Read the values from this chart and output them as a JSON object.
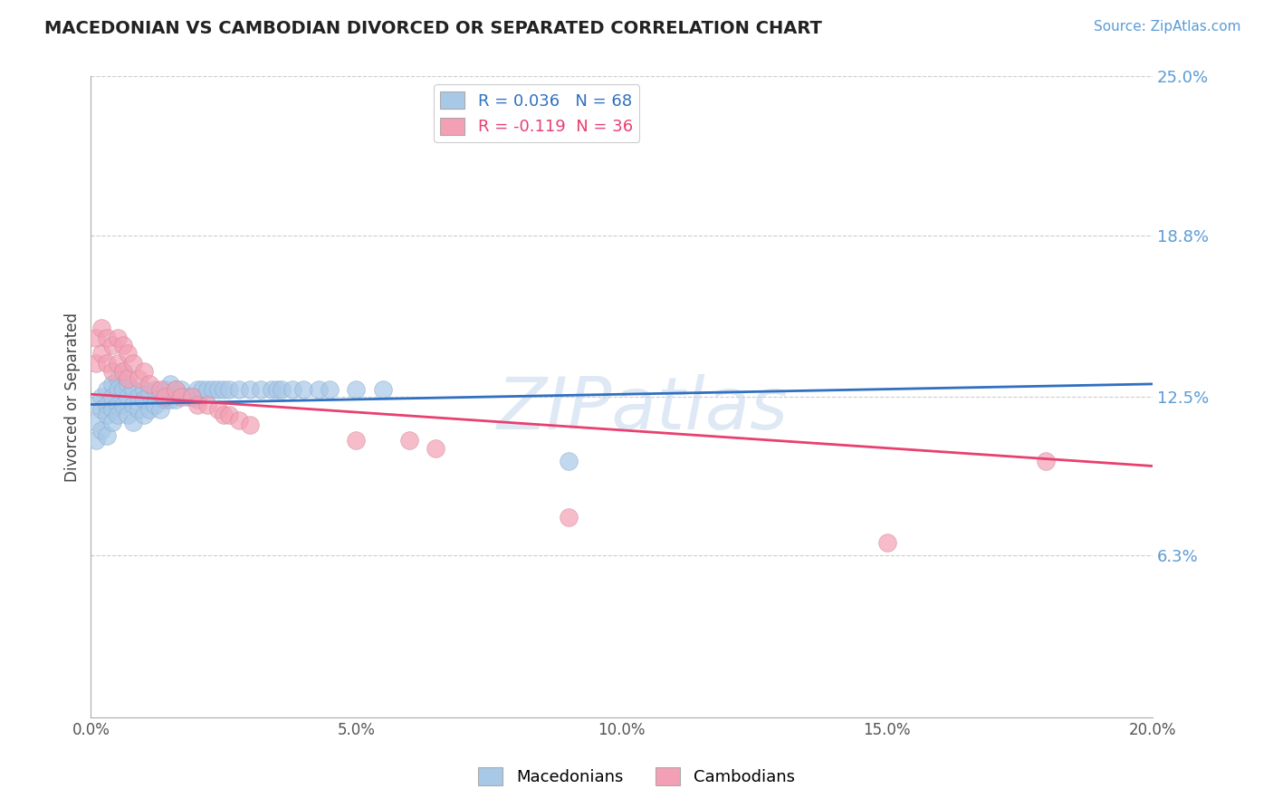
{
  "title": "MACEDONIAN VS CAMBODIAN DIVORCED OR SEPARATED CORRELATION CHART",
  "source_text": "Source: ZipAtlas.com",
  "ylabel": "Divorced or Separated",
  "xlim": [
    0.0,
    0.2
  ],
  "ylim": [
    0.0,
    0.25
  ],
  "yticks": [
    0.063,
    0.125,
    0.188,
    0.25
  ],
  "ytick_labels": [
    "6.3%",
    "12.5%",
    "18.8%",
    "25.0%"
  ],
  "xticks": [
    0.0,
    0.05,
    0.1,
    0.15,
    0.2
  ],
  "xtick_labels": [
    "0.0%",
    "5.0%",
    "10.0%",
    "15.0%",
    "20.0%"
  ],
  "macedonian_color": "#a8c8e8",
  "cambodian_color": "#f4a0b4",
  "macedonian_line_color": "#3070c0",
  "cambodian_line_color": "#e84070",
  "legend_macedonian_label": "R = 0.036   N = 68",
  "legend_cambodian_label": "R = -0.119  N = 36",
  "bottom_legend_macedonian": "Macedonians",
  "bottom_legend_cambodian": "Cambodians",
  "watermark_text": "ZIPatlas",
  "mac_trend_x0": 0.0,
  "mac_trend_y0": 0.122,
  "mac_trend_x1": 0.2,
  "mac_trend_y1": 0.13,
  "cam_trend_x0": 0.0,
  "cam_trend_y0": 0.126,
  "cam_trend_x1": 0.2,
  "cam_trend_y1": 0.098,
  "macedonian_x": [
    0.001,
    0.001,
    0.001,
    0.002,
    0.002,
    0.002,
    0.003,
    0.003,
    0.003,
    0.003,
    0.004,
    0.004,
    0.004,
    0.004,
    0.005,
    0.005,
    0.005,
    0.005,
    0.006,
    0.006,
    0.006,
    0.007,
    0.007,
    0.007,
    0.008,
    0.008,
    0.008,
    0.009,
    0.009,
    0.01,
    0.01,
    0.01,
    0.011,
    0.011,
    0.012,
    0.012,
    0.013,
    0.013,
    0.014,
    0.014,
    0.015,
    0.015,
    0.016,
    0.016,
    0.017,
    0.018,
    0.019,
    0.02,
    0.02,
    0.021,
    0.022,
    0.023,
    0.024,
    0.025,
    0.026,
    0.028,
    0.03,
    0.032,
    0.034,
    0.035,
    0.036,
    0.038,
    0.04,
    0.043,
    0.045,
    0.05,
    0.055,
    0.09
  ],
  "macedonian_y": [
    0.122,
    0.115,
    0.108,
    0.125,
    0.12,
    0.112,
    0.128,
    0.122,
    0.118,
    0.11,
    0.13,
    0.125,
    0.12,
    0.115,
    0.132,
    0.128,
    0.122,
    0.118,
    0.135,
    0.128,
    0.122,
    0.13,
    0.125,
    0.118,
    0.128,
    0.122,
    0.115,
    0.125,
    0.12,
    0.128,
    0.124,
    0.118,
    0.126,
    0.12,
    0.128,
    0.122,
    0.126,
    0.12,
    0.128,
    0.124,
    0.13,
    0.124,
    0.128,
    0.124,
    0.128,
    0.125,
    0.125,
    0.128,
    0.124,
    0.128,
    0.128,
    0.128,
    0.128,
    0.128,
    0.128,
    0.128,
    0.128,
    0.128,
    0.128,
    0.128,
    0.128,
    0.128,
    0.128,
    0.128,
    0.128,
    0.128,
    0.128,
    0.1
  ],
  "cambodian_x": [
    0.001,
    0.001,
    0.002,
    0.002,
    0.003,
    0.003,
    0.004,
    0.004,
    0.005,
    0.005,
    0.006,
    0.006,
    0.007,
    0.007,
    0.008,
    0.009,
    0.01,
    0.011,
    0.013,
    0.014,
    0.016,
    0.017,
    0.019,
    0.02,
    0.022,
    0.024,
    0.025,
    0.026,
    0.028,
    0.03,
    0.05,
    0.06,
    0.065,
    0.09,
    0.15,
    0.18
  ],
  "cambodian_y": [
    0.148,
    0.138,
    0.152,
    0.142,
    0.148,
    0.138,
    0.145,
    0.135,
    0.148,
    0.138,
    0.145,
    0.135,
    0.142,
    0.132,
    0.138,
    0.132,
    0.135,
    0.13,
    0.128,
    0.125,
    0.128,
    0.125,
    0.125,
    0.122,
    0.122,
    0.12,
    0.118,
    0.118,
    0.116,
    0.114,
    0.108,
    0.108,
    0.105,
    0.078,
    0.068,
    0.1
  ]
}
